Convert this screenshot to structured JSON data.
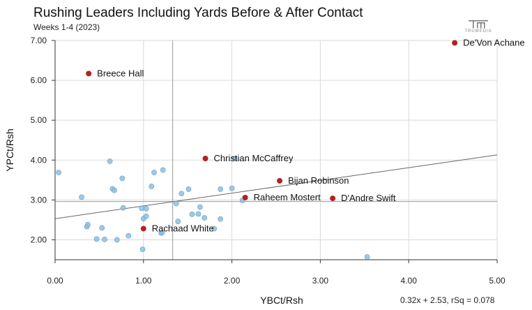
{
  "header": {
    "title": "Rushing Leaders Including Yards Before & After Contact",
    "subtitle": "Weeks 1-4 (2023)",
    "logo_text": "TRUMEDIA"
  },
  "footnote": "0.32x + 2.53, rSq = 0.078",
  "colors": {
    "highlight": "#b22222",
    "point": "#8fbedf",
    "point_stroke": "#6a9fc6",
    "grid": "#d9d9d9",
    "axis": "#333333",
    "mean_line": "#999999",
    "trend_line": "#666666"
  },
  "chart_data": {
    "type": "scatter",
    "xlabel": "YBCt/Rsh",
    "ylabel": "YPCt/Rsh",
    "xlim": [
      0,
      5
    ],
    "ylim": [
      1.5,
      7
    ],
    "xticks": [
      "0.00",
      "1.00",
      "2.00",
      "3.00",
      "4.00",
      "5.00"
    ],
    "xtick_values": [
      0,
      1,
      2,
      3,
      4,
      5
    ],
    "yticks": [
      "2.00",
      "3.00",
      "4.00",
      "5.00",
      "6.00",
      "7.00"
    ],
    "ytick_values": [
      2,
      3,
      4,
      5,
      6,
      7
    ],
    "grid": true,
    "mean_lines": {
      "x": 1.33,
      "y": 2.96
    },
    "trendline": {
      "slope": 0.32,
      "intercept": 2.53
    },
    "highlighted": [
      {
        "name": "De'Von Achane",
        "x": 4.52,
        "y": 6.94
      },
      {
        "name": "Breece Hall",
        "x": 0.38,
        "y": 6.17
      },
      {
        "name": "Christian McCaffrey",
        "x": 1.7,
        "y": 4.04
      },
      {
        "name": "Bijan Robinson",
        "x": 2.54,
        "y": 3.48
      },
      {
        "name": "Raheem Mostert",
        "x": 2.15,
        "y": 3.06
      },
      {
        "name": "D'Andre Swift",
        "x": 3.14,
        "y": 3.04
      },
      {
        "name": "Rachaad White",
        "x": 1.0,
        "y": 2.28
      }
    ],
    "others": [
      {
        "x": 0.04,
        "y": 3.69
      },
      {
        "x": 0.3,
        "y": 3.07
      },
      {
        "x": 0.36,
        "y": 2.33
      },
      {
        "x": 0.37,
        "y": 2.38
      },
      {
        "x": 0.47,
        "y": 2.02
      },
      {
        "x": 0.53,
        "y": 2.3
      },
      {
        "x": 0.56,
        "y": 2.01
      },
      {
        "x": 0.62,
        "y": 3.97
      },
      {
        "x": 0.65,
        "y": 3.28
      },
      {
        "x": 0.67,
        "y": 3.24
      },
      {
        "x": 0.7,
        "y": 2.0
      },
      {
        "x": 0.76,
        "y": 3.54
      },
      {
        "x": 0.77,
        "y": 2.8
      },
      {
        "x": 0.83,
        "y": 2.1
      },
      {
        "x": 0.98,
        "y": 2.79
      },
      {
        "x": 0.99,
        "y": 1.76
      },
      {
        "x": 1.0,
        "y": 2.53
      },
      {
        "x": 1.03,
        "y": 2.78
      },
      {
        "x": 1.03,
        "y": 2.59
      },
      {
        "x": 1.09,
        "y": 3.34
      },
      {
        "x": 1.12,
        "y": 3.69
      },
      {
        "x": 1.2,
        "y": 2.17
      },
      {
        "x": 1.21,
        "y": 2.18
      },
      {
        "x": 1.22,
        "y": 3.75
      },
      {
        "x": 1.37,
        "y": 2.91
      },
      {
        "x": 1.39,
        "y": 2.46
      },
      {
        "x": 1.43,
        "y": 3.16
      },
      {
        "x": 1.51,
        "y": 3.27
      },
      {
        "x": 1.55,
        "y": 2.64
      },
      {
        "x": 1.62,
        "y": 2.65
      },
      {
        "x": 1.64,
        "y": 2.82
      },
      {
        "x": 1.69,
        "y": 2.55
      },
      {
        "x": 1.8,
        "y": 2.28
      },
      {
        "x": 1.87,
        "y": 3.27
      },
      {
        "x": 1.87,
        "y": 2.52
      },
      {
        "x": 2.0,
        "y": 3.29
      },
      {
        "x": 2.03,
        "y": 4.04
      },
      {
        "x": 2.12,
        "y": 2.99
      },
      {
        "x": 3.53,
        "y": 1.57
      }
    ]
  }
}
